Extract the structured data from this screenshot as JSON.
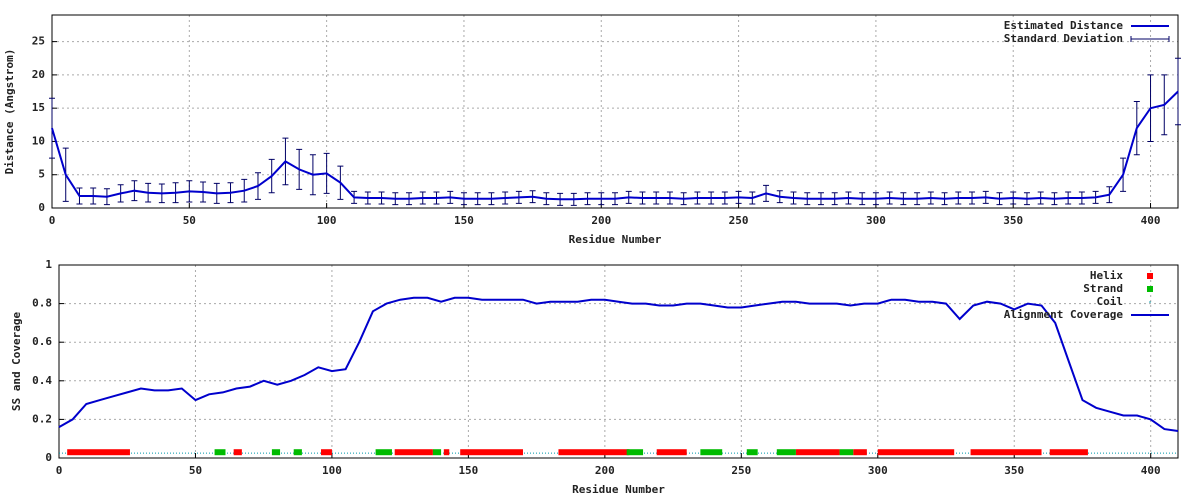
{
  "chart_data": [
    {
      "type": "line",
      "xlabel": "Residue Number",
      "ylabel": "Distance (Angstrom)",
      "x": [
        0,
        5,
        10,
        15,
        20,
        25,
        30,
        35,
        40,
        45,
        50,
        55,
        60,
        65,
        70,
        75,
        80,
        85,
        90,
        95,
        100,
        105,
        110,
        115,
        120,
        125,
        130,
        135,
        140,
        145,
        150,
        155,
        160,
        165,
        170,
        175,
        180,
        185,
        190,
        195,
        200,
        205,
        210,
        215,
        220,
        225,
        230,
        235,
        240,
        245,
        250,
        255,
        260,
        265,
        270,
        275,
        280,
        285,
        290,
        295,
        300,
        305,
        310,
        315,
        320,
        325,
        330,
        335,
        340,
        345,
        350,
        355,
        360,
        365,
        370,
        375,
        380,
        385,
        390,
        395,
        400,
        405,
        410
      ],
      "series": [
        {
          "name": "Estimated Distance",
          "color": "#0000cc",
          "kind": "line",
          "values": [
            12,
            5,
            1.8,
            1.8,
            1.7,
            2.2,
            2.6,
            2.3,
            2.2,
            2.3,
            2.5,
            2.4,
            2.2,
            2.3,
            2.6,
            3.3,
            4.8,
            7,
            5.8,
            5,
            5.2,
            3.8,
            1.6,
            1.5,
            1.5,
            1.4,
            1.4,
            1.5,
            1.5,
            1.6,
            1.4,
            1.4,
            1.4,
            1.5,
            1.6,
            1.7,
            1.4,
            1.3,
            1.3,
            1.4,
            1.4,
            1.4,
            1.6,
            1.5,
            1.5,
            1.5,
            1.4,
            1.5,
            1.5,
            1.5,
            1.6,
            1.5,
            2.2,
            1.7,
            1.5,
            1.4,
            1.4,
            1.4,
            1.5,
            1.4,
            1.4,
            1.5,
            1.4,
            1.4,
            1.5,
            1.4,
            1.5,
            1.5,
            1.6,
            1.4,
            1.5,
            1.4,
            1.5,
            1.4,
            1.5,
            1.5,
            1.6,
            2,
            5,
            12,
            15,
            15.5,
            17.5
          ]
        },
        {
          "name": "Standard Deviation",
          "color": "#000066",
          "kind": "errorbar",
          "values": [
            4.5,
            4,
            1.2,
            1.2,
            1.2,
            1.3,
            1.5,
            1.4,
            1.4,
            1.5,
            1.6,
            1.5,
            1.5,
            1.5,
            1.7,
            2,
            2.5,
            3.5,
            3,
            3,
            3,
            2.5,
            0.9,
            0.9,
            0.9,
            0.9,
            0.9,
            0.9,
            0.9,
            0.9,
            0.9,
            0.9,
            0.9,
            0.9,
            0.9,
            0.9,
            0.9,
            0.9,
            0.9,
            0.9,
            0.9,
            0.9,
            0.9,
            0.9,
            0.9,
            0.9,
            0.9,
            0.9,
            0.9,
            0.9,
            0.9,
            0.9,
            1.2,
            0.9,
            0.9,
            0.9,
            0.9,
            0.9,
            0.9,
            0.9,
            0.9,
            0.9,
            0.9,
            0.9,
            0.9,
            0.9,
            0.9,
            0.9,
            0.9,
            0.9,
            0.9,
            0.9,
            0.9,
            0.9,
            0.9,
            0.9,
            0.9,
            1.2,
            2.5,
            4,
            5,
            4.5,
            5
          ]
        }
      ],
      "xlim": [
        0,
        410
      ],
      "xticks": [
        0,
        50,
        100,
        150,
        200,
        250,
        300,
        350,
        400
      ],
      "ylim": [
        0,
        29
      ],
      "yticks": [
        0,
        5,
        10,
        15,
        20,
        25
      ],
      "grid": true,
      "legend": "top-right"
    },
    {
      "type": "line",
      "xlabel": "Residue Number",
      "ylabel": "SS and Coverage",
      "x": [
        0,
        5,
        10,
        15,
        20,
        25,
        30,
        35,
        40,
        45,
        50,
        55,
        60,
        65,
        70,
        75,
        80,
        85,
        90,
        95,
        100,
        105,
        110,
        115,
        120,
        125,
        130,
        135,
        140,
        145,
        150,
        155,
        160,
        165,
        170,
        175,
        180,
        185,
        190,
        195,
        200,
        205,
        210,
        215,
        220,
        225,
        230,
        235,
        240,
        245,
        250,
        255,
        260,
        265,
        270,
        275,
        280,
        285,
        290,
        295,
        300,
        305,
        310,
        315,
        320,
        325,
        330,
        335,
        340,
        345,
        350,
        355,
        360,
        365,
        370,
        375,
        380,
        385,
        390,
        395,
        400,
        405,
        410
      ],
      "series": [
        {
          "name": "Helix",
          "color": "#ff0000",
          "kind": "ranges",
          "y": 0.03,
          "ranges": [
            [
              3,
              26
            ],
            [
              64,
              67
            ],
            [
              96,
              100
            ],
            [
              123,
              137
            ],
            [
              141,
              143
            ],
            [
              147,
              170
            ],
            [
              183,
              209
            ],
            [
              219,
              230
            ],
            [
              270,
              286
            ],
            [
              291,
              296
            ],
            [
              300,
              328
            ],
            [
              334,
              360
            ],
            [
              363,
              377
            ]
          ]
        },
        {
          "name": "Strand",
          "color": "#00bb00",
          "kind": "ranges",
          "y": 0.03,
          "ranges": [
            [
              57,
              61
            ],
            [
              78,
              81
            ],
            [
              86,
              89
            ],
            [
              116,
              122
            ],
            [
              137,
              140
            ],
            [
              208,
              214
            ],
            [
              235,
              243
            ],
            [
              252,
              256
            ],
            [
              263,
              270
            ],
            [
              286,
              291
            ]
          ]
        },
        {
          "name": "Coil",
          "color": "#0099aa",
          "kind": "coil",
          "y": 0.025,
          "ranges": [
            [
              0,
              410
            ]
          ]
        },
        {
          "name": "Alignment Coverage",
          "color": "#0000cc",
          "kind": "line",
          "values": [
            0.16,
            0.2,
            0.28,
            0.3,
            0.32,
            0.34,
            0.36,
            0.35,
            0.35,
            0.36,
            0.3,
            0.33,
            0.34,
            0.36,
            0.37,
            0.4,
            0.38,
            0.4,
            0.43,
            0.47,
            0.45,
            0.46,
            0.6,
            0.76,
            0.8,
            0.82,
            0.83,
            0.83,
            0.81,
            0.83,
            0.83,
            0.82,
            0.82,
            0.82,
            0.82,
            0.8,
            0.81,
            0.81,
            0.81,
            0.82,
            0.82,
            0.81,
            0.8,
            0.8,
            0.79,
            0.79,
            0.8,
            0.8,
            0.79,
            0.78,
            0.78,
            0.79,
            0.8,
            0.81,
            0.81,
            0.8,
            0.8,
            0.8,
            0.79,
            0.8,
            0.8,
            0.82,
            0.82,
            0.81,
            0.81,
            0.8,
            0.72,
            0.79,
            0.81,
            0.8,
            0.77,
            0.8,
            0.79,
            0.7,
            0.5,
            0.3,
            0.26,
            0.24,
            0.22,
            0.22,
            0.2,
            0.15,
            0.14
          ]
        }
      ],
      "xlim": [
        0,
        410
      ],
      "xticks": [
        0,
        50,
        100,
        150,
        200,
        250,
        300,
        350,
        400
      ],
      "ylim": [
        0,
        1
      ],
      "yticks": [
        0,
        0.2,
        0.4,
        0.6,
        0.8,
        1
      ],
      "grid": true,
      "legend": "top-right"
    }
  ]
}
